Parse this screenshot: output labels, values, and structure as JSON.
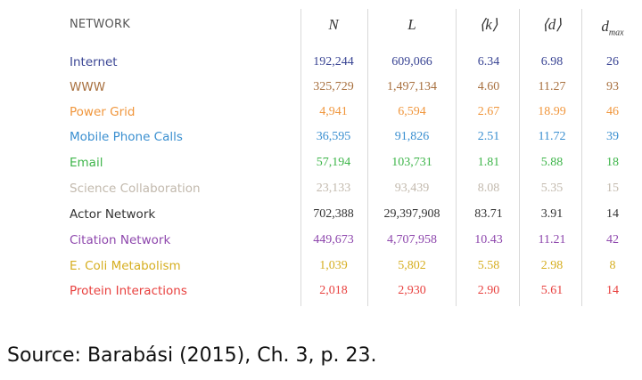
{
  "header": {
    "network": "NETWORK",
    "n": "N",
    "l": "L",
    "k": "⟨k⟩",
    "d": "⟨d⟩",
    "dmax_base": "d",
    "dmax_sub": "max"
  },
  "rows": [
    {
      "name": "Internet",
      "n": "192,244",
      "l": "609,066",
      "k": "6.34",
      "d": "6.98",
      "dmax": "26",
      "color": "#3a4594"
    },
    {
      "name": "WWW",
      "n": "325,729",
      "l": "1,497,134",
      "k": "4.60",
      "d": "11.27",
      "dmax": "93",
      "color": "#a8703f"
    },
    {
      "name": "Power Grid",
      "n": "4,941",
      "l": "6,594",
      "k": "2.67",
      "d": "18.99",
      "dmax": "46",
      "color": "#f0963c"
    },
    {
      "name": "Mobile Phone Calls",
      "n": "36,595",
      "l": "91,826",
      "k": "2.51",
      "d": "11.72",
      "dmax": "39",
      "color": "#3a8fd0"
    },
    {
      "name": "Email",
      "n": "57,194",
      "l": "103,731",
      "k": "1.81",
      "d": "5.88",
      "dmax": "18",
      "color": "#3eb54a"
    },
    {
      "name": "Science Collaboration",
      "n": "23,133",
      "l": "93,439",
      "k": "8.08",
      "d": "5.35",
      "dmax": "15",
      "color": "#c2b9ad"
    },
    {
      "name": "Actor Network",
      "n": "702,388",
      "l": "29,397,908",
      "k": "83.71",
      "d": "3.91",
      "dmax": "14",
      "color": "#333333"
    },
    {
      "name": "Citation Network",
      "n": "449,673",
      "l": "4,707,958",
      "k": "10.43",
      "d": "11.21",
      "dmax": "42",
      "color": "#8e47ad"
    },
    {
      "name": "E. Coli Metabolism",
      "n": "1,039",
      "l": "5,802",
      "k": "5.58",
      "d": "2.98",
      "dmax": "8",
      "color": "#d6ae20"
    },
    {
      "name": "Protein Interactions",
      "n": "2,018",
      "l": "2,930",
      "k": "2.90",
      "d": "5.61",
      "dmax": "14",
      "color": "#e8403e"
    }
  ],
  "source": "Source: Barabási (2015), Ch. 3, p. 23."
}
